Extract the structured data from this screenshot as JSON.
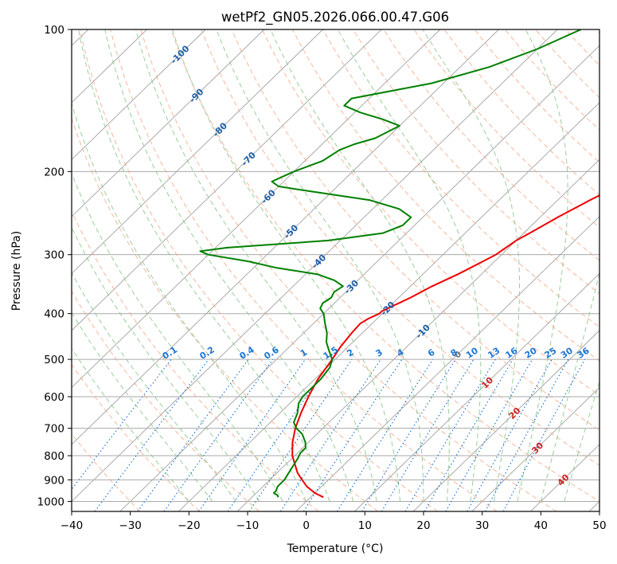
{
  "chart_data": {
    "type": "line",
    "title": "wetPf2_GN05.2026.066.00.47.G06",
    "xlabel": "Temperature (°C)",
    "ylabel": "Pressure (hPa)",
    "xlim": [
      -40,
      50
    ],
    "ylim": [
      1050,
      100
    ],
    "y_scale": "log",
    "grid": true,
    "x_ticks": [
      -40,
      -30,
      -20,
      -10,
      0,
      10,
      20,
      30,
      40,
      50
    ],
    "y_ticks": [
      100,
      200,
      300,
      400,
      500,
      600,
      700,
      800,
      900,
      1000
    ],
    "skew_labels": [
      "-100",
      "-90",
      "-80",
      "-70",
      "-60",
      "-50",
      "-40",
      "-30",
      "-20",
      "-10",
      "0",
      "10",
      "20",
      "30",
      "40"
    ],
    "mixing_ratio_labels": [
      "0.1",
      "0.2",
      "0.4",
      "0.6",
      "1",
      "1.5",
      "2",
      "3",
      "4",
      "6",
      "8",
      "10",
      "13",
      "16",
      "20",
      "25",
      "30",
      "36"
    ],
    "colors": {
      "temperature": "#ee0000",
      "dewpoint": "#008000",
      "isotherm": "#aaaaaa",
      "dry_adiabat": "#f4a582",
      "moist_adiabat": "#8fc98f",
      "mixing_ratio": "#1f77d4",
      "skew_label_cold": "#1f5fa8",
      "skew_label_warm": "#cc2222",
      "skew_label_zero": "#777777"
    },
    "series": [
      {
        "name": "temperature",
        "pressure": [
          980,
          960,
          930,
          900,
          870,
          830,
          800,
          750,
          700,
          650,
          600,
          550,
          500,
          470,
          440,
          420,
          410,
          400,
          395,
          385,
          370,
          350,
          330,
          310,
          300,
          290,
          280,
          270,
          250,
          230,
          210,
          200,
          180,
          160,
          150,
          140,
          130,
          120,
          110,
          100
        ],
        "values": [
          2.2,
          0,
          -2.5,
          -4.5,
          -6.5,
          -8.7,
          -10.4,
          -12.7,
          -14.7,
          -16.4,
          -18,
          -19.5,
          -20.5,
          -21.3,
          -21.8,
          -22,
          -21.5,
          -20.5,
          -20.5,
          -19.5,
          -18,
          -16.3,
          -14,
          -12,
          -11,
          -10.5,
          -10,
          -9,
          -7,
          -4.5,
          -1.5,
          0.5,
          3.5,
          7.5,
          9.5,
          12.5,
          15,
          17,
          18.5,
          20.5
        ]
      },
      {
        "name": "dewpoint",
        "pressure": [
          980,
          970,
          960,
          950,
          930,
          900,
          870,
          840,
          810,
          790,
          770,
          750,
          720,
          700,
          680,
          650,
          620,
          600,
          580,
          550,
          520,
          500,
          480,
          460,
          440,
          420,
          400,
          390,
          380,
          370,
          360,
          350,
          340,
          330,
          320,
          310,
          300,
          295,
          290,
          280,
          270,
          260,
          250,
          240,
          230,
          220,
          215,
          210,
          200,
          190,
          180,
          175,
          170,
          160,
          155,
          150,
          145,
          140,
          130,
          120,
          110,
          100
        ],
        "values": [
          -5.5,
          -6,
          -7,
          -7,
          -7.5,
          -7.5,
          -8,
          -8.5,
          -9,
          -9.5,
          -9.5,
          -10.5,
          -12.5,
          -14.5,
          -16,
          -17,
          -18.5,
          -19,
          -19,
          -19,
          -19.5,
          -20.5,
          -22.5,
          -24.5,
          -26,
          -28,
          -30,
          -31.5,
          -32,
          -31.5,
          -32,
          -31.5,
          -34,
          -38,
          -46,
          -52,
          -60,
          -62,
          -58,
          -42,
          -34,
          -32,
          -32,
          -35.5,
          -42,
          -54,
          -60,
          -62,
          -60,
          -57,
          -56,
          -54.5,
          -52,
          -50,
          -54,
          -59,
          -63,
          -63,
          -52,
          -45,
          -40,
          -36
        ]
      }
    ]
  }
}
